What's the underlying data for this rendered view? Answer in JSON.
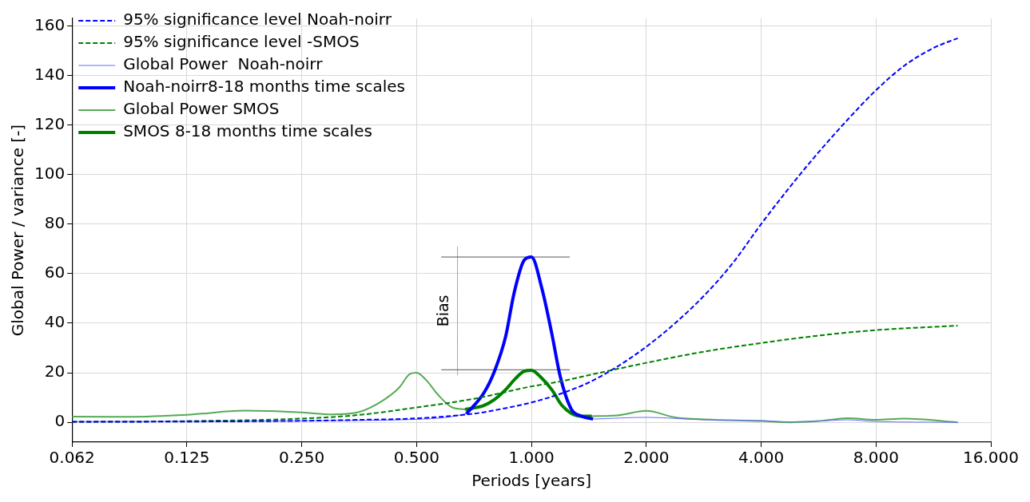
{
  "chart_data": {
    "type": "line",
    "xlabel": "Periods [years]",
    "ylabel": "Global Power / variance [-]",
    "log": "x",
    "xlim": [
      0.0625,
      16
    ],
    "xticks": [
      {
        "value": 0.0625,
        "label": "0.062"
      },
      {
        "value": 0.125,
        "label": "0.125"
      },
      {
        "value": 0.25,
        "label": "0.250"
      },
      {
        "value": 0.5,
        "label": "0.500"
      },
      {
        "value": 1,
        "label": "1.000"
      },
      {
        "value": 2,
        "label": "2.000"
      },
      {
        "value": 4,
        "label": "4.000"
      },
      {
        "value": 8,
        "label": "8.000"
      },
      {
        "value": 16,
        "label": "16.000"
      }
    ],
    "ylim": [
      -8,
      163
    ],
    "yticks": [
      0,
      20,
      40,
      60,
      80,
      100,
      120,
      140,
      160
    ],
    "grid": true,
    "legend": "top left",
    "annotations": [
      "Bias"
    ],
    "series": [
      {
        "name": "95% significance level Noah-noirr",
        "color": "#0000ff",
        "line_style": "dashed",
        "x": [
          0.0625,
          0.125,
          0.25,
          0.354,
          0.5,
          0.707,
          0.841,
          1.0,
          1.19,
          1.41,
          1.68,
          2.0,
          2.38,
          2.83,
          3.36,
          4.0,
          4.76,
          5.66,
          6.73,
          8.0,
          9.51,
          11.3,
          13.1
        ],
        "values": [
          0.2,
          0.3,
          0.6,
          1.0,
          1.6,
          3.5,
          5.5,
          8,
          11.5,
          16,
          22.5,
          30.5,
          40,
          51,
          64,
          80,
          95,
          109,
          122,
          134,
          144,
          151,
          155
        ]
      },
      {
        "name": "95% significance level -SMOS",
        "color": "#008000",
        "line_style": "dashed",
        "x": [
          0.0625,
          0.125,
          0.25,
          0.354,
          0.5,
          0.707,
          1.0,
          1.2,
          1.41,
          2.0,
          2.83,
          4.0,
          5.66,
          8.0,
          13.1
        ],
        "values": [
          0.2,
          0.5,
          1.5,
          3,
          6,
          9.5,
          14.5,
          16.6,
          19,
          24,
          28.5,
          32,
          35,
          37.2,
          39
        ]
      },
      {
        "name": "Global Power  Noah-noirr",
        "color": "#6a6aff",
        "line_style": "solid",
        "x": [
          0.0625,
          0.125,
          0.25,
          0.5,
          0.6,
          0.675,
          1.0,
          1.45,
          2.0,
          2.83,
          4.0,
          4.76,
          5.66,
          6.73,
          8.0,
          13.1
        ],
        "values": [
          0.3,
          0.4,
          0.6,
          1.2,
          2,
          3.4,
          null,
          1.3,
          2,
          1,
          0.7,
          0.2,
          0.5,
          1,
          0.3,
          0
        ]
      },
      {
        "name": "Noah-noirr8-18 months time scales",
        "color": "#0000ff",
        "line_style": "solid",
        "x": [
          0.675,
          0.75,
          0.8,
          0.856,
          0.9,
          0.957,
          1.0,
          1.065,
          1.13,
          1.19,
          1.27,
          1.35,
          1.45
        ],
        "values": [
          3.4,
          11.8,
          20.6,
          34.7,
          52,
          65.4,
          66.7,
          54,
          36,
          18.4,
          5.5,
          2.5,
          1.3
        ]
      },
      {
        "name": "Global Power SMOS",
        "color": "#55aa55",
        "line_style": "solid",
        "x": [
          0.0625,
          0.088,
          0.125,
          0.177,
          0.25,
          0.3,
          0.35,
          0.4,
          0.45,
          0.48,
          0.5,
          0.53,
          0.57,
          0.62,
          0.67,
          1.0,
          1.44,
          1.68,
          2.0,
          2.38,
          2.83,
          4.0,
          4.76,
          5.66,
          6.73,
          8.0,
          9.5,
          13.1
        ],
        "values": [
          2.3,
          2.2,
          3,
          4.7,
          4,
          3.2,
          4,
          8,
          14,
          19.5,
          20,
          17,
          11,
          6,
          5.2,
          null,
          2.5,
          2.8,
          4.6,
          2,
          1.2,
          0.5,
          0,
          0.5,
          1.7,
          1,
          1.5,
          0
        ]
      },
      {
        "name": "SMOS 8-18 months time scales",
        "color": "#008000",
        "line_style": "solid",
        "x": [
          0.67,
          0.75,
          0.8,
          0.856,
          0.91,
          0.957,
          1.0,
          1.055,
          1.13,
          1.2,
          1.27,
          1.35,
          1.44
        ],
        "values": [
          5.2,
          6.8,
          9.2,
          13.2,
          17.8,
          20.6,
          21,
          18.4,
          13.2,
          7,
          3.7,
          2.5,
          2.5
        ]
      },
      {
        "color": "#555555",
        "line_style": "solid",
        "x": [
          0.58,
          1.26
        ],
        "values": [
          66.7,
          66.7
        ]
      },
      {
        "color": "#555555",
        "line_style": "solid",
        "x": [
          0.58,
          1.26
        ],
        "values": [
          21.2,
          21.2
        ]
      },
      {
        "color": "#f08080",
        "line_style": "solid",
        "x": [
          0.64,
          0.64
        ],
        "values": [
          19,
          71
        ]
      }
    ]
  }
}
